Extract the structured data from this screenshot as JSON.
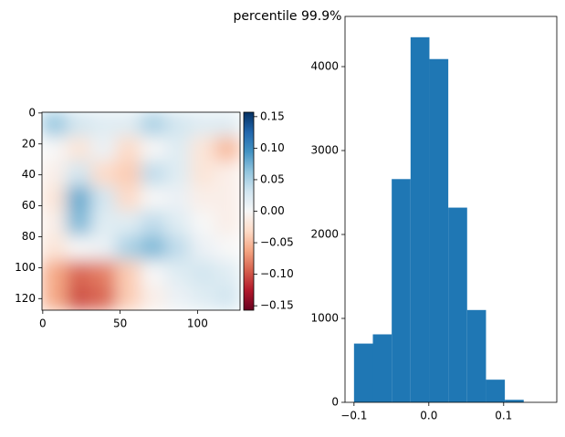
{
  "title": "percentile 99.9%",
  "chart_data": [
    {
      "type": "heatmap",
      "colormap": "RdBu",
      "values": [
        [
          0.06,
          0.03,
          0.02,
          0.02,
          0.05,
          0.03,
          0.02,
          0.02
        ],
        [
          0.0,
          -0.02,
          0.01,
          -0.03,
          0.0,
          0.02,
          -0.02,
          -0.05
        ],
        [
          -0.01,
          0.03,
          -0.03,
          -0.04,
          0.04,
          0.02,
          -0.02,
          -0.01
        ],
        [
          -0.02,
          0.08,
          0.03,
          -0.03,
          0.0,
          0.01,
          -0.01,
          -0.01
        ],
        [
          -0.01,
          0.07,
          0.02,
          0.02,
          0.04,
          0.02,
          0.0,
          -0.01
        ],
        [
          -0.02,
          0.0,
          0.01,
          0.05,
          0.07,
          0.04,
          0.01,
          0.0
        ],
        [
          -0.06,
          -0.09,
          -0.08,
          -0.04,
          0.0,
          0.02,
          0.03,
          0.02
        ],
        [
          -0.06,
          -0.1,
          -0.09,
          -0.04,
          -0.01,
          0.01,
          0.02,
          0.03
        ]
      ],
      "xlim": [
        -0.5,
        127.5
      ],
      "ylim": [
        127.5,
        -0.5
      ],
      "xticks": [
        0,
        50,
        100
      ],
      "yticks": [
        0,
        20,
        40,
        60,
        80,
        100,
        120
      ],
      "clim": [
        -0.157,
        0.157
      ],
      "cbar_ticks": [
        0.15,
        {
          "value": 0.1,
          "label": "0.10"
        },
        {
          "value": 0.05,
          "label": "0.05"
        },
        {
          "value": 0,
          "label": "0.00"
        },
        {
          "value": -0.05,
          "label": "−0.05"
        },
        {
          "value": -0.1,
          "label": "−0.10"
        },
        {
          "value": -0.15,
          "label": "−0.15"
        }
      ]
    },
    {
      "type": "histogram",
      "color": "#1f77b4",
      "bins": [
        -0.1,
        -0.0748,
        -0.0496,
        -0.0244,
        0.0008,
        0.026,
        0.0512,
        0.0764,
        0.1016,
        0.1268
      ],
      "values": [
        700,
        810,
        2660,
        4350,
        4090,
        2320,
        1100,
        270,
        30
      ],
      "xlim": [
        -0.112,
        0.171
      ],
      "ylim": [
        0,
        4598
      ],
      "xticks": [
        {
          "value": -0.1,
          "label": "−0.1"
        },
        {
          "value": 0,
          "label": "0.0"
        },
        0.1
      ],
      "yticks": [
        0,
        1000,
        2000,
        3000,
        4000
      ]
    }
  ]
}
